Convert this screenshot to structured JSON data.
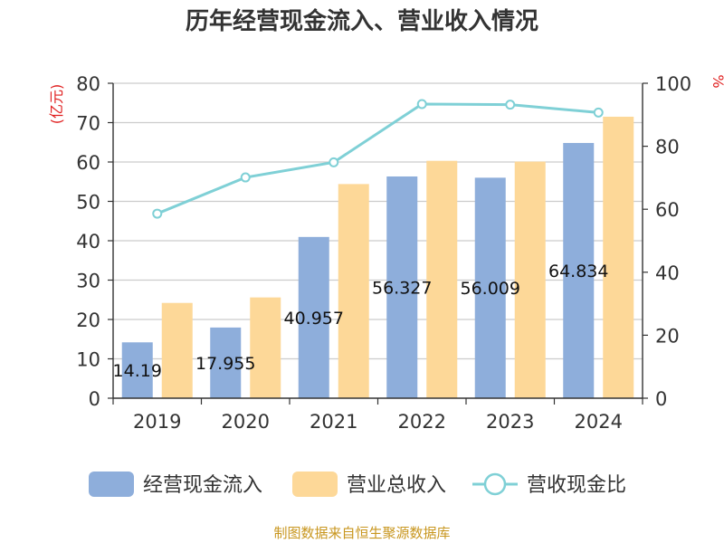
{
  "chart_data": {
    "type": "bar",
    "title": "历年经营现金流入、营业收入情况",
    "categories": [
      "2019",
      "2020",
      "2021",
      "2022",
      "2023",
      "2024"
    ],
    "series": [
      {
        "name": "经营现金流入",
        "kind": "bar",
        "axis": "left",
        "color": "#8eaedb",
        "values": [
          14.19,
          17.955,
          40.957,
          56.327,
          56.009,
          64.834
        ],
        "labels": [
          "14.19",
          "17.955",
          "40.957",
          "56.327",
          "56.009",
          "64.834"
        ]
      },
      {
        "name": "营业总收入",
        "kind": "bar",
        "axis": "left",
        "color": "#fdd898",
        "values": [
          24.2,
          25.6,
          54.4,
          60.3,
          60.1,
          71.5
        ]
      },
      {
        "name": "营收现金比",
        "kind": "line",
        "axis": "right",
        "color": "#7fd0d6",
        "values": [
          58.6,
          70.1,
          74.9,
          93.4,
          93.2,
          90.7
        ]
      }
    ],
    "y_left": {
      "label": "(亿元)",
      "min": 0,
      "max": 80,
      "step": 10,
      "ticks": [
        "0",
        "10",
        "20",
        "30",
        "40",
        "50",
        "60",
        "70",
        "80"
      ]
    },
    "y_right": {
      "label": "%",
      "min": 0,
      "max": 100,
      "step": 20,
      "ticks": [
        "0",
        "20",
        "40",
        "60",
        "80",
        "100"
      ]
    },
    "grid": true,
    "legend": "bottom"
  },
  "footer": "制图数据来自恒生聚源数据库"
}
